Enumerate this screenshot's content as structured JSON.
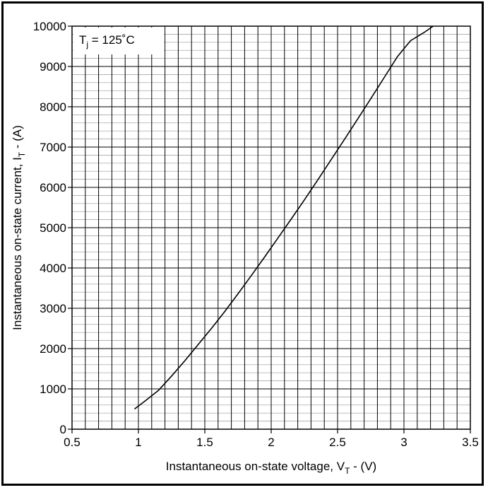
{
  "chart_data": {
    "type": "line",
    "xlabel": {
      "main": "Instantaneous on-state voltage, V",
      "sub": "T",
      "tail": " - (V)"
    },
    "ylabel": {
      "main": "Instantaneous on-state current, I",
      "sub": "T",
      "tail": " - (A)"
    },
    "xlim": [
      0.5,
      3.5
    ],
    "ylim": [
      0,
      10000
    ],
    "xticks": [
      0.5,
      1,
      1.5,
      2,
      2.5,
      3,
      3.5
    ],
    "xtick_labels": [
      "0.5",
      "1",
      "1.5",
      "2",
      "2.5",
      "3",
      "3.5"
    ],
    "yticks": [
      0,
      1000,
      2000,
      3000,
      4000,
      5000,
      6000,
      7000,
      8000,
      9000,
      10000
    ],
    "ytick_labels": [
      "0",
      "1000",
      "2000",
      "3000",
      "4000",
      "5000",
      "6000",
      "7000",
      "8000",
      "9000",
      "10000"
    ],
    "x_minor_step": 0.1,
    "y_minor_step": 200,
    "grid": true,
    "annotation": {
      "main": "T",
      "sub": "j",
      "tail": " = 125˚C"
    },
    "series": [
      {
        "x": [
          0.97,
          1.05,
          1.15,
          1.25,
          1.35,
          1.45,
          1.55,
          1.65,
          1.75,
          1.85,
          1.95,
          2.05,
          2.15,
          2.25,
          2.35,
          2.45,
          2.55,
          2.65,
          2.75,
          2.85,
          2.95,
          3.05,
          3.15,
          3.22
        ],
        "y": [
          500,
          700,
          960,
          1320,
          1700,
          2100,
          2500,
          2920,
          3360,
          3810,
          4270,
          4740,
          5210,
          5690,
          6180,
          6680,
          7180,
          7690,
          8200,
          8720,
          9240,
          9640,
          9840,
          10000
        ]
      }
    ]
  }
}
